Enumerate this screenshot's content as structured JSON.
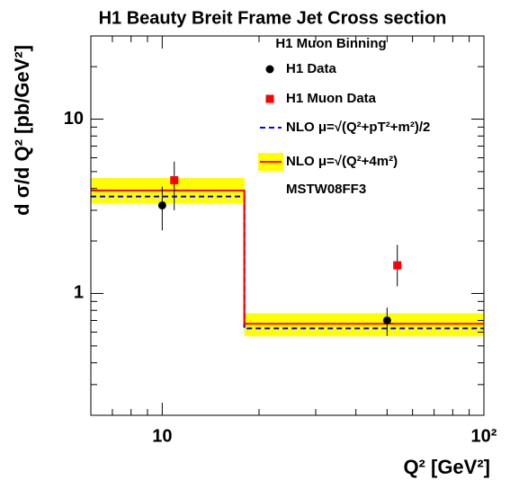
{
  "chart_data": {
    "type": "errorbar",
    "title": "H1 Beauty Breit Frame Jet Cross section",
    "legend_title": "H1 Muon Binning",
    "note": "MSTW08FF3",
    "xlabel": "Q²   [GeV²]",
    "ylabel": "d σ/d Q²   [pb/GeV²]",
    "xscale": "log",
    "yscale": "log",
    "xlim": [
      6,
      100
    ],
    "ylim": [
      0.2,
      30
    ],
    "xticks": [
      10,
      {
        "value": 100,
        "label": "10²"
      }
    ],
    "yticks": [
      1,
      10
    ],
    "xminor_ticks": [
      6,
      7,
      8,
      9,
      20,
      30,
      40,
      50,
      60,
      70,
      80,
      90
    ],
    "yminor_ticks": [
      0.2,
      0.3,
      0.4,
      0.5,
      0.6,
      0.7,
      0.8,
      0.9,
      2,
      3,
      4,
      5,
      6,
      7,
      8,
      9,
      20,
      30
    ],
    "series": [
      {
        "name": "H1 Data",
        "color": "#000000",
        "marker": "circle",
        "x": [
          10,
          50
        ],
        "values": [
          3.2,
          0.7
        ],
        "y_low": [
          2.3,
          0.57
        ],
        "y_high": [
          4.1,
          0.83
        ]
      },
      {
        "name": "H1 Muon Data",
        "color": "#ff0000",
        "marker": "square",
        "x": [
          10.9,
          53.8
        ],
        "values": [
          4.46,
          1.45
        ],
        "y_low": [
          3.0,
          1.1
        ],
        "y_high": [
          5.7,
          1.9
        ]
      }
    ],
    "bin_edges": [
      6,
      18,
      100
    ],
    "predictions": [
      {
        "name": "NLO μ=√(Q²+pT²+m²)/2",
        "color": "#0000ff",
        "style": "dashed",
        "values": [
          3.6,
          0.63
        ]
      },
      {
        "name": "NLO μ=√(Q²+4m²)",
        "color": "#ff0000",
        "band_color": "#ffff00",
        "style": "solid",
        "values": [
          3.9,
          0.67
        ],
        "band_low": [
          3.3,
          0.57
        ],
        "band_high": [
          4.6,
          0.77
        ]
      }
    ]
  }
}
